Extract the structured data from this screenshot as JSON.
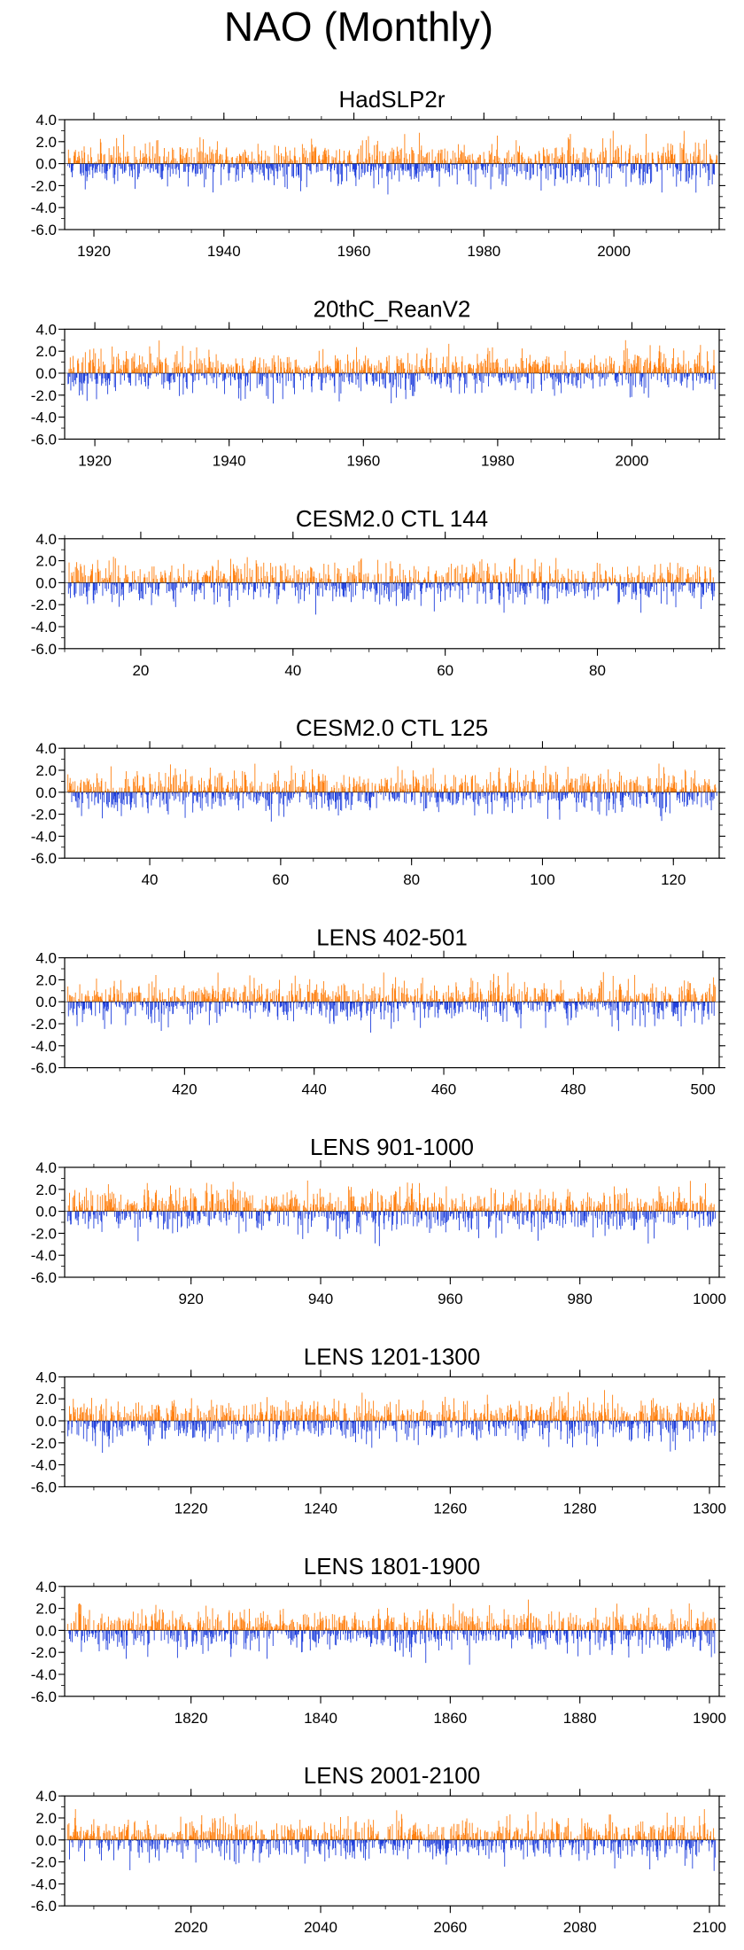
{
  "figure_title": "NAO (Monthly)",
  "colors": {
    "positive": "#ff7f0e",
    "negative": "#1f3fdc",
    "axis": "#000000",
    "faint": "#c8c8c8"
  },
  "chart_data": [
    {
      "type": "bar",
      "title": "HadSLP2r",
      "xlim": [
        1915.5,
        2016.2
      ],
      "ylim": [
        -6.0,
        4.0
      ],
      "yticks": [
        4.0,
        2.0,
        0.0,
        -2.0,
        -4.0,
        -6.0
      ],
      "ytick_labels": [
        "4.0",
        "2.0",
        "0.0",
        "-2.0",
        "-4.0",
        "-6.0"
      ],
      "xticks": [
        1920,
        1940,
        1960,
        1980,
        2000
      ],
      "xtick_labels": [
        "1920",
        "1940",
        "1960",
        "1980",
        "2000"
      ],
      "series": [
        {
          "name": "NAO",
          "x_start": 1916,
          "x_end": 2016,
          "step": 0.0833,
          "seed": 11,
          "min": -5.0,
          "max": 3.0
        }
      ],
      "ylabel": "",
      "xlabel": ""
    },
    {
      "type": "bar",
      "title": "20thC_ReanV2",
      "xlim": [
        1915.5,
        2013.0
      ],
      "ylim": [
        -6.0,
        4.0
      ],
      "yticks": [
        4.0,
        2.0,
        0.0,
        -2.0,
        -4.0,
        -6.0
      ],
      "ytick_labels": [
        "4.0",
        "2.0",
        "0.0",
        "-2.0",
        "-4.0",
        "-6.0"
      ],
      "xticks": [
        1920,
        1940,
        1960,
        1980,
        2000
      ],
      "xtick_labels": [
        "1920",
        "1940",
        "1960",
        "1980",
        "2000"
      ],
      "series": [
        {
          "name": "NAO",
          "x_start": 1916,
          "x_end": 2012.5,
          "step": 0.0833,
          "seed": 23,
          "min": -5.0,
          "max": 3.0
        }
      ],
      "ylabel": "",
      "xlabel": ""
    },
    {
      "type": "bar",
      "title": "CESM2.0 CTL 144",
      "xlim": [
        10,
        96
      ],
      "ylim": [
        -6.0,
        4.0
      ],
      "yticks": [
        4.0,
        2.0,
        0.0,
        -2.0,
        -4.0,
        -6.0
      ],
      "ytick_labels": [
        "4.0",
        "2.0",
        "0.0",
        "-2.0",
        "-4.0",
        "-6.0"
      ],
      "xticks": [
        20,
        40,
        60,
        80
      ],
      "xtick_labels": [
        "20",
        "40",
        "60",
        "80"
      ],
      "series": [
        {
          "name": "NAO",
          "x_start": 10.5,
          "x_end": 95.5,
          "step": 0.0833,
          "seed": 37,
          "min": -4.5,
          "max": 2.7
        }
      ],
      "ylabel": "",
      "xlabel": ""
    },
    {
      "type": "bar",
      "title": "CESM2.0 CTL 125",
      "xlim": [
        27,
        127
      ],
      "ylim": [
        -6.0,
        4.0
      ],
      "yticks": [
        4.0,
        2.0,
        0.0,
        -2.0,
        -4.0,
        -6.0
      ],
      "ytick_labels": [
        "4.0",
        "2.0",
        "0.0",
        "-2.0",
        "-4.0",
        "-6.0"
      ],
      "xticks": [
        40,
        60,
        80,
        100,
        120
      ],
      "xtick_labels": [
        "40",
        "60",
        "80",
        "100",
        "120"
      ],
      "series": [
        {
          "name": "NAO",
          "x_start": 27.5,
          "x_end": 126.7,
          "step": 0.0833,
          "seed": 41,
          "min": -4.5,
          "max": 2.6
        }
      ],
      "ylabel": "",
      "xlabel": ""
    },
    {
      "type": "bar",
      "title": "LENS 402-501",
      "xlim": [
        401.5,
        502.5
      ],
      "ylim": [
        -6.0,
        4.0
      ],
      "yticks": [
        4.0,
        2.0,
        0.0,
        -2.0,
        -4.0,
        -6.0
      ],
      "ytick_labels": [
        "4.0",
        "2.0",
        "0.0",
        "-2.0",
        "-4.0",
        "-6.0"
      ],
      "xticks": [
        420,
        440,
        460,
        480,
        500
      ],
      "xtick_labels": [
        "420",
        "440",
        "460",
        "480",
        "500"
      ],
      "series": [
        {
          "name": "NAO",
          "x_start": 402,
          "x_end": 502,
          "step": 0.0833,
          "seed": 53,
          "min": -4.5,
          "max": 3.0
        }
      ],
      "ylabel": "",
      "xlabel": ""
    },
    {
      "type": "bar",
      "title": "LENS 901-1000",
      "xlim": [
        900.5,
        1001.5
      ],
      "ylim": [
        -6.0,
        4.0
      ],
      "yticks": [
        4.0,
        2.0,
        0.0,
        -2.0,
        -4.0,
        -6.0
      ],
      "ytick_labels": [
        "4.0",
        "2.0",
        "0.0",
        "-2.0",
        "-4.0",
        "-6.0"
      ],
      "xticks": [
        920,
        940,
        960,
        980,
        1000
      ],
      "xtick_labels": [
        "920",
        "940",
        "960",
        "980",
        "1000"
      ],
      "series": [
        {
          "name": "NAO",
          "x_start": 901,
          "x_end": 1001,
          "step": 0.0833,
          "seed": 67,
          "min": -5.0,
          "max": 2.8
        }
      ],
      "ylabel": "",
      "xlabel": ""
    },
    {
      "type": "bar",
      "title": "LENS 1201-1300",
      "xlim": [
        1200.5,
        1301.5
      ],
      "ylim": [
        -6.0,
        4.0
      ],
      "yticks": [
        4.0,
        2.0,
        0.0,
        -2.0,
        -4.0,
        -6.0
      ],
      "ytick_labels": [
        "4.0",
        "2.0",
        "0.0",
        "-2.0",
        "-4.0",
        "-6.0"
      ],
      "xticks": [
        1220,
        1240,
        1260,
        1280,
        1300
      ],
      "xtick_labels": [
        "1220",
        "1240",
        "1260",
        "1280",
        "1300"
      ],
      "series": [
        {
          "name": "NAO",
          "x_start": 1201,
          "x_end": 1301,
          "step": 0.0833,
          "seed": 79,
          "min": -4.5,
          "max": 2.8
        }
      ],
      "ylabel": "",
      "xlabel": ""
    },
    {
      "type": "bar",
      "title": "LENS 1801-1900",
      "xlim": [
        1800.5,
        1901.5
      ],
      "ylim": [
        -6.0,
        4.0
      ],
      "yticks": [
        4.0,
        2.0,
        0.0,
        -2.0,
        -4.0,
        -6.0
      ],
      "ytick_labels": [
        "4.0",
        "2.0",
        "0.0",
        "-2.0",
        "-4.0",
        "-6.0"
      ],
      "xticks": [
        1820,
        1840,
        1860,
        1880,
        1900
      ],
      "xtick_labels": [
        "1820",
        "1840",
        "1860",
        "1880",
        "1900"
      ],
      "series": [
        {
          "name": "NAO",
          "x_start": 1801,
          "x_end": 1901,
          "step": 0.0833,
          "seed": 83,
          "min": -4.8,
          "max": 2.8
        }
      ],
      "ylabel": "",
      "xlabel": ""
    },
    {
      "type": "bar",
      "title": "LENS 2001-2100",
      "xlim": [
        2000.5,
        2101.5
      ],
      "ylim": [
        -6.0,
        4.0
      ],
      "yticks": [
        4.0,
        2.0,
        0.0,
        -2.0,
        -4.0,
        -6.0
      ],
      "ytick_labels": [
        "4.0",
        "2.0",
        "0.0",
        "-2.0",
        "-4.0",
        "-6.0"
      ],
      "xticks": [
        2020,
        2040,
        2060,
        2080,
        2100
      ],
      "xtick_labels": [
        "2020",
        "2040",
        "2060",
        "2080",
        "2100"
      ],
      "series": [
        {
          "name": "NAO",
          "x_start": 2001,
          "x_end": 2101,
          "step": 0.0833,
          "seed": 97,
          "min": -4.5,
          "max": 2.8
        }
      ],
      "ylabel": "",
      "xlabel": ""
    }
  ]
}
